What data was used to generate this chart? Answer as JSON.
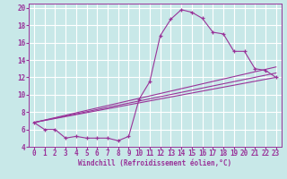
{
  "xlabel": "Windchill (Refroidissement éolien,°C)",
  "xlim": [
    -0.5,
    23.5
  ],
  "ylim": [
    4,
    20.5
  ],
  "xtick_vals": [
    0,
    1,
    2,
    3,
    4,
    5,
    6,
    7,
    8,
    9,
    10,
    11,
    12,
    13,
    14,
    15,
    16,
    17,
    18,
    19,
    20,
    21,
    22,
    23
  ],
  "ytick_vals": [
    4,
    6,
    8,
    10,
    12,
    14,
    16,
    18,
    20
  ],
  "background_color": "#c8e8e8",
  "grid_color": "#ffffff",
  "line_color": "#993399",
  "line1_x": [
    0,
    1,
    2,
    3,
    4,
    5,
    6,
    7,
    8,
    9,
    10,
    11,
    12,
    13,
    14,
    15,
    16,
    17,
    18,
    19,
    20,
    21,
    22,
    23
  ],
  "line1_y": [
    6.8,
    6.0,
    6.0,
    5.0,
    5.2,
    5.0,
    5.0,
    5.0,
    4.7,
    5.2,
    9.5,
    11.5,
    16.8,
    18.7,
    19.8,
    19.5,
    18.8,
    17.2,
    17.0,
    15.0,
    15.0,
    13.0,
    12.8,
    12.0
  ],
  "line2_x": [
    0,
    23
  ],
  "line2_y": [
    6.8,
    12.0
  ],
  "line3_x": [
    0,
    23
  ],
  "line3_y": [
    6.8,
    12.5
  ],
  "line4_x": [
    0,
    23
  ],
  "line4_y": [
    6.8,
    13.2
  ],
  "xlabel_fontsize": 5.5,
  "tick_fontsize": 5.5
}
